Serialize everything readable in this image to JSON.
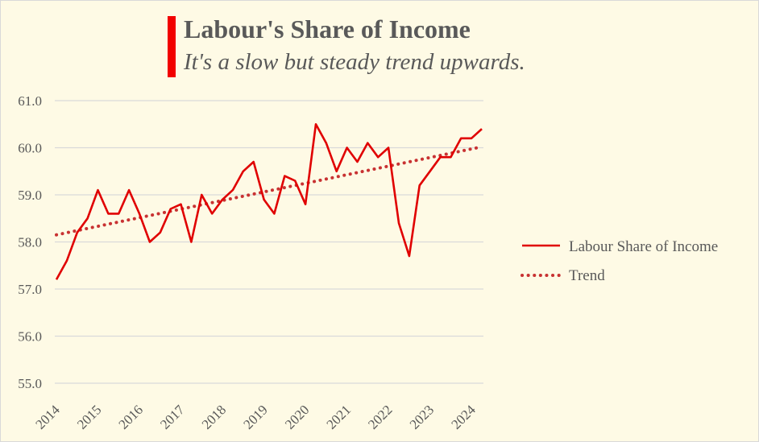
{
  "colors": {
    "background": "#fefae5",
    "accent": "#f20000",
    "series_line": "#e00000",
    "trend_line": "#c83232",
    "gridline": "#d9d9d9",
    "text": "#595959"
  },
  "chart_data": {
    "type": "line",
    "title": "Labour's Share of Income",
    "subtitle": "It's a slow but steady trend upwards.",
    "xlabel": "",
    "ylabel": "",
    "ylim": [
      55.0,
      61.0
    ],
    "yticks": [
      "55.0",
      "56.0",
      "57.0",
      "58.0",
      "59.0",
      "60.0",
      "61.0"
    ],
    "xticks": [
      "2014",
      "2015",
      "2016",
      "2017",
      "2018",
      "2019",
      "2020",
      "2021",
      "2022",
      "2023",
      "2024"
    ],
    "grid": true,
    "legend": "right",
    "series": [
      {
        "name": "Labour Share of Income",
        "style": "solid",
        "values": [
          57.2,
          57.6,
          58.2,
          58.5,
          59.1,
          58.6,
          58.6,
          59.1,
          58.6,
          58.0,
          58.2,
          58.7,
          58.8,
          58.0,
          59.0,
          58.6,
          58.9,
          59.1,
          59.5,
          59.7,
          58.9,
          58.6,
          59.4,
          59.3,
          58.8,
          60.5,
          60.1,
          59.5,
          60.0,
          59.7,
          60.1,
          59.8,
          60.0,
          58.4,
          57.7,
          59.2,
          59.5,
          59.8,
          59.8,
          60.2,
          60.2,
          60.4
        ]
      },
      {
        "name": "Trend",
        "style": "dotted",
        "start": 58.15,
        "end": 60.02
      }
    ]
  }
}
